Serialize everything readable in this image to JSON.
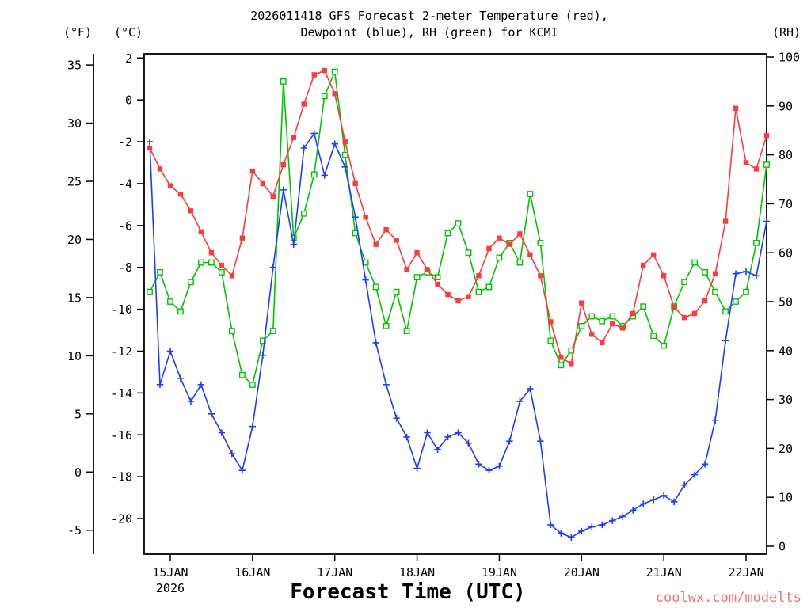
{
  "title": {
    "line1": "2026011418 GFS Forecast 2-meter Temperature (red),",
    "line2": "Dewpoint (blue), RH (green) for KCMI"
  },
  "axis_labels": {
    "fahrenheit": "(°F)",
    "celsius": "(°C)",
    "rh": "(RH)"
  },
  "x_axis_title": "Forecast Time (UTC)",
  "watermark": "coolwx.com/modelts",
  "colors": {
    "temperature": "#fa3c3c",
    "dewpoint": "#1e3cff",
    "rh": "#00c400",
    "watermark": "#f87070",
    "axis": "#000000",
    "background": "#ffffff"
  },
  "chart_data": {
    "type": "line",
    "title": "2026011418 GFS Forecast 2-meter Temperature (red), Dewpoint (blue), RH (green) for KCMI",
    "model": "GFS",
    "station": "KCMI",
    "init_time": "2026011418",
    "xlabel": "Forecast Time (UTC)",
    "x_axis": {
      "tick_labels": [
        "15JAN",
        "16JAN",
        "17JAN",
        "18JAN",
        "19JAN",
        "20JAN",
        "21JAN",
        "22JAN"
      ],
      "year_label": "2026",
      "start_hours_before_first_tick": 6,
      "step_hours": 3,
      "total_hours": 180
    },
    "celsius_axis": {
      "label": "(°C)",
      "ticks": [
        2,
        0,
        -2,
        -4,
        -6,
        -8,
        -10,
        -12,
        -14,
        -16,
        -18,
        -20
      ],
      "range": [
        2.2,
        -21.7
      ]
    },
    "fahrenheit_axis": {
      "label": "(°F)",
      "ticks": [
        35,
        30,
        25,
        20,
        15,
        10,
        5,
        0,
        -5
      ]
    },
    "rh_axis": {
      "label": "(RH)",
      "ticks": [
        100,
        90,
        80,
        70,
        60,
        50,
        40,
        30,
        20,
        10,
        0
      ],
      "range": [
        100.65,
        -1.62
      ]
    },
    "grid": false,
    "series": [
      {
        "key": "temperature",
        "name": "2-meter Temperature",
        "unit": "degC",
        "axis": "celsius",
        "marker": "filled-square",
        "color_key": "temperature",
        "values": [
          -2.3,
          -3.3,
          -4.1,
          -4.5,
          -5.3,
          -6.3,
          -7.3,
          -7.9,
          -8.4,
          -6.6,
          -3.4,
          -4.0,
          -4.6,
          -3.1,
          -1.8,
          -0.2,
          1.2,
          1.4,
          0.3,
          -2.0,
          -4.0,
          -5.6,
          -6.9,
          -6.2,
          -6.7,
          -8.1,
          -7.3,
          -8.1,
          -8.8,
          -9.3,
          -9.6,
          -9.4,
          -8.4,
          -7.1,
          -6.6,
          -6.9,
          -6.4,
          -7.4,
          -8.4,
          -10.6,
          -12.3,
          -12.6,
          -9.7,
          -11.2,
          -11.6,
          -10.7,
          -10.9,
          -10.2,
          -7.9,
          -7.4,
          -8.4,
          -9.9,
          -10.4,
          -10.2,
          -9.6,
          -8.3,
          -5.8,
          -0.4,
          -3.0,
          -3.3,
          -1.7
        ]
      },
      {
        "key": "dewpoint",
        "name": "Dewpoint",
        "unit": "degC",
        "axis": "celsius",
        "marker": "plus",
        "color_key": "dewpoint",
        "values": [
          -2.0,
          -13.6,
          -12.0,
          -13.3,
          -14.4,
          -13.6,
          -15.0,
          -15.9,
          -16.9,
          -17.7,
          -15.6,
          -12.2,
          -8.0,
          -4.3,
          -6.9,
          -2.3,
          -1.6,
          -3.6,
          -2.1,
          -3.2,
          -5.6,
          -8.6,
          -11.6,
          -13.6,
          -15.2,
          -16.1,
          -17.6,
          -15.9,
          -16.7,
          -16.1,
          -15.9,
          -16.4,
          -17.4,
          -17.7,
          -17.5,
          -16.3,
          -14.4,
          -13.8,
          -16.3,
          -20.3,
          -20.7,
          -20.9,
          -20.6,
          -20.4,
          -20.3,
          -20.1,
          -19.9,
          -19.6,
          -19.3,
          -19.1,
          -18.9,
          -19.2,
          -18.4,
          -17.9,
          -17.4,
          -15.3,
          -11.5,
          -8.3,
          -8.2,
          -8.4,
          -5.8
        ]
      },
      {
        "key": "rh",
        "name": "RH",
        "unit": "%",
        "axis": "rh",
        "marker": "open-square",
        "color_key": "rh",
        "values": [
          52,
          56,
          50,
          48,
          54,
          58,
          58,
          56,
          44,
          35,
          33,
          42,
          44,
          95,
          63,
          68,
          76,
          92,
          97,
          80,
          64,
          58,
          53,
          45,
          52,
          44,
          55,
          56,
          55,
          64,
          66,
          60,
          52,
          53,
          59,
          62,
          58,
          72,
          62,
          42,
          37,
          40,
          45,
          47,
          46,
          47,
          45,
          47,
          49,
          43,
          41,
          49,
          54,
          58,
          56,
          52,
          48,
          50,
          52,
          62,
          78
        ]
      }
    ]
  }
}
